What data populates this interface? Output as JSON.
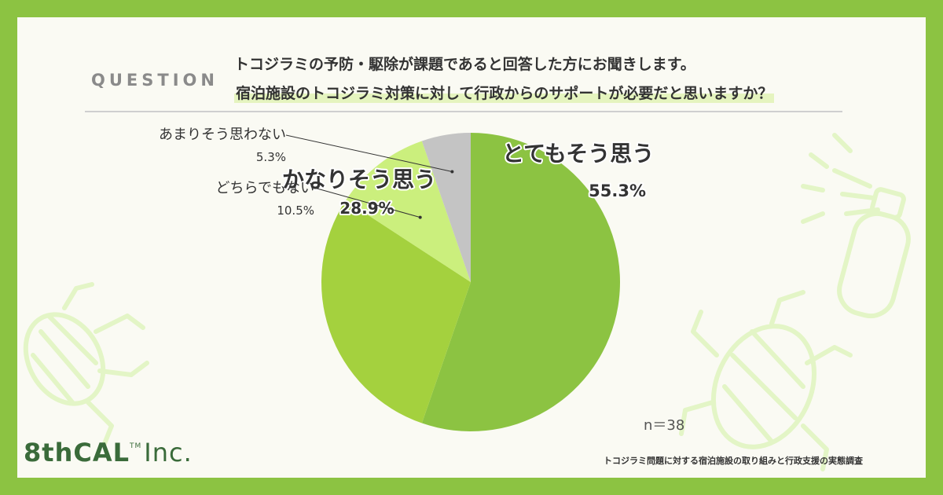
{
  "question": {
    "label": "QUESTION",
    "line1": "トコジラミの予防・駆除が課題であると回答した方にお聞きします。",
    "line2": "宿泊施設のトコジラミ対策に対して行政からのサポートが必要だと思いますか？"
  },
  "chart_data": {
    "type": "pie",
    "start_angle_deg": 0,
    "direction": "clockwise",
    "slices": [
      {
        "label": "とてもそう思う",
        "value": 55.3,
        "value_label": "55.3%",
        "color": "#8cc342"
      },
      {
        "label": "かなりそう思う",
        "value": 28.9,
        "value_label": "28.9%",
        "color": "#a4d13e"
      },
      {
        "label": "どちらでもない",
        "value": 10.5,
        "value_label": "10.5%",
        "color": "#cbef7d"
      },
      {
        "label": "あまりそう思わない",
        "value": 5.3,
        "value_label": "5.3%",
        "color": "#c4c4c4"
      }
    ]
  },
  "sample_size": "n＝38",
  "footer": "トコジラミ問題に対する宿泊施設の取り組みと行政支援の実態調査",
  "logo": {
    "main": "8thCAL",
    "tm": "TM",
    "suffix": "Inc."
  },
  "colors": {
    "frame": "#8cc342",
    "background": "#fafaf3",
    "decoration": "#e6f7cc"
  }
}
